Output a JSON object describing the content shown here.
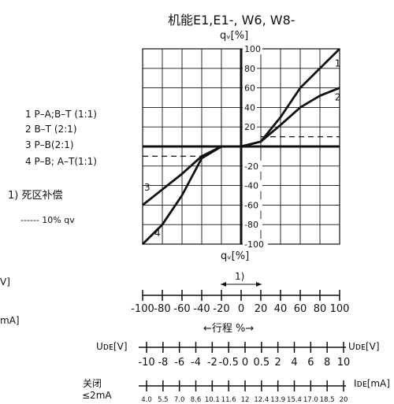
{
  "chart_data": {
    "type": "line",
    "title": "机能E1,E1-, W6, W8-",
    "ylabel": "qᵥ[%]",
    "xlabel": "qᵥ[%]",
    "xlim": [
      -100,
      100
    ],
    "ylim": [
      -100,
      100
    ],
    "grid": true,
    "y_ticks": [
      "100",
      "80",
      "60",
      "40",
      "20",
      "-20",
      "-40",
      "-60",
      "-80",
      "-100"
    ],
    "y_tick_values": [
      100,
      80,
      60,
      40,
      20,
      -20,
      -40,
      -60,
      -80,
      -100
    ],
    "legend": [
      "1 P–A;B–T (1:1)",
      "2 B–T (2:1)",
      "3 P–B(2:1)",
      "4 P–B; A–T(1:1)"
    ],
    "deadzone_label": "1) 死区补偿",
    "threshold_label": "------ 10% qv",
    "series": [
      {
        "name": "1",
        "x": [
          0,
          20,
          40,
          60,
          80,
          100
        ],
        "y": [
          0,
          5,
          30,
          60,
          80,
          100
        ]
      },
      {
        "name": "2",
        "x": [
          0,
          20,
          40,
          60,
          80,
          100
        ],
        "y": [
          0,
          5,
          22,
          40,
          52,
          60
        ]
      },
      {
        "name": "3",
        "x": [
          0,
          -20,
          -40,
          -60,
          -80,
          -100
        ],
        "y": [
          0,
          0,
          -10,
          -28,
          -44,
          -60
        ]
      },
      {
        "name": "4",
        "x": [
          0,
          -20,
          -40,
          -60,
          -80,
          -100
        ],
        "y": [
          0,
          0,
          -12,
          -50,
          -80,
          -100
        ]
      }
    ],
    "threshold": {
      "value": 10,
      "pos_x": [
        20,
        100
      ],
      "neg_x": [
        -100,
        -40
      ]
    },
    "deadzone_marker": {
      "label": "1)",
      "x": [
        -20,
        20
      ]
    }
  },
  "left_fragments": {
    "v": "V]",
    "ma": "mA]"
  },
  "travel_axis": {
    "ticks": [
      "-100",
      "-80",
      "-60",
      "-40",
      "-20",
      "0",
      "20",
      "40",
      "60",
      "80",
      "100"
    ],
    "label": "←行程 %→"
  },
  "voltage_axis": {
    "label_left": "Uᴅᴇ[V]",
    "label_right": "Uᴅᴇ[V]",
    "ticks": [
      "-10",
      "-8",
      "-6",
      "-4",
      "-2",
      "-0.5",
      "0",
      "0.5",
      "2",
      "4",
      "6",
      "8",
      "10"
    ]
  },
  "current_axis": {
    "close_label_1": "关闭",
    "close_label_2": "≤2mA",
    "label_right": "Iᴅᴇ[mA]",
    "ticks": [
      "4.0",
      "5.5",
      "7.0",
      "8.6",
      "10.1",
      "11.6",
      "12",
      "12.4",
      "13.9",
      "15.4",
      "17.0",
      "18.5",
      "20"
    ]
  }
}
